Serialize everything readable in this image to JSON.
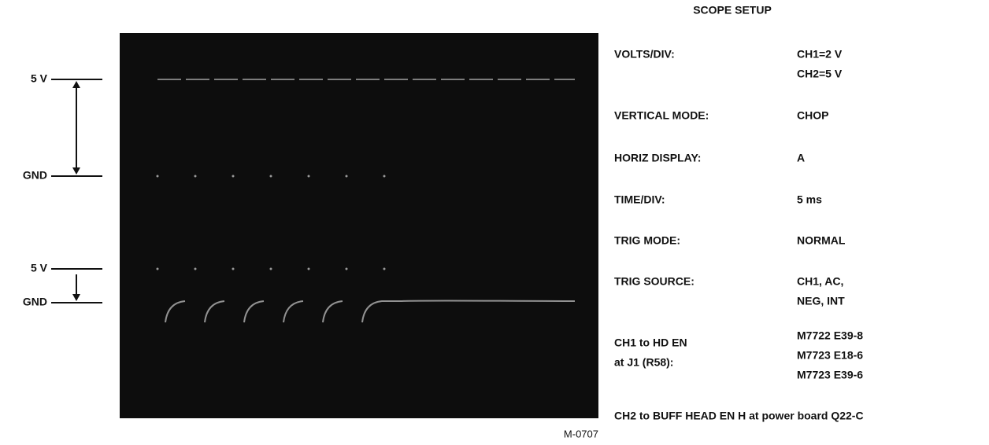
{
  "scope_labels": [
    "5 V",
    "GND",
    "5 V",
    "GND"
  ],
  "figure_id": "M-0707",
  "setup": {
    "title": "SCOPE SETUP",
    "rows": [
      {
        "label": [
          "VOLTS/DIV:"
        ],
        "value": [
          "CH1=2 V",
          "CH2=5 V"
        ]
      },
      {
        "label": [
          "VERTICAL MODE:"
        ],
        "value": [
          "CHOP"
        ]
      },
      {
        "label": [
          "HORIZ DISPLAY:"
        ],
        "value": [
          "A"
        ]
      },
      {
        "label": [
          "TIME/DIV:"
        ],
        "value": [
          "5 ms"
        ]
      },
      {
        "label": [
          "TRIG MODE:"
        ],
        "value": [
          "NORMAL"
        ]
      },
      {
        "label": [
          "TRIG SOURCE:"
        ],
        "value": [
          "CH1, AC,",
          "NEG, INT"
        ]
      },
      {
        "label": [
          "CH1 to HD EN",
          "at J1 (R58):"
        ],
        "value": [
          "M7722 E39-8",
          "M7723 E18-6",
          "M7723 E39-6"
        ]
      }
    ],
    "footer": "CH2 to BUFF HEAD EN H at power board Q22-C"
  }
}
